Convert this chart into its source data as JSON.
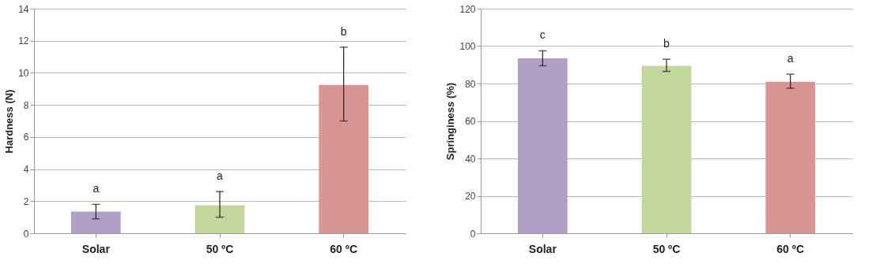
{
  "chart_data": [
    {
      "type": "bar",
      "ylabel": "Hardness (N)",
      "categories": [
        "Solar",
        "50 ºC",
        "60 ºC"
      ],
      "values": [
        1.35,
        1.75,
        9.25
      ],
      "colors": [
        "#b0a0c8",
        "#c3d69b",
        "#d99594"
      ],
      "errors": [
        [
          0.9,
          1.8
        ],
        [
          1.0,
          2.6
        ],
        [
          7.0,
          11.6
        ]
      ],
      "ylim": [
        0,
        14
      ],
      "yticks": [
        0,
        2,
        4,
        6,
        8,
        10,
        12,
        14
      ],
      "grid": "y",
      "annotations": [
        {
          "text": "a",
          "x": "Solar",
          "y": 1.8
        },
        {
          "text": "a",
          "x": "50 ºC",
          "y": 2.6
        },
        {
          "text": "b",
          "x": "60 ºC",
          "y": 11.6
        }
      ]
    },
    {
      "type": "bar",
      "ylabel": "Springiness (%)",
      "categories": [
        "Solar",
        "50 ºC",
        "60 ºC"
      ],
      "values": [
        93.5,
        89.5,
        81
      ],
      "colors": [
        "#b0a0c8",
        "#c3d69b",
        "#d99594"
      ],
      "errors": [
        [
          89.5,
          97.5
        ],
        [
          86.5,
          93
        ],
        [
          77.5,
          85
        ]
      ],
      "ylim": [
        0,
        120
      ],
      "yticks": [
        0,
        20,
        40,
        60,
        80,
        100,
        120
      ],
      "grid": "y",
      "annotations": [
        {
          "text": "c",
          "x": "Solar",
          "y": 97.5
        },
        {
          "text": "b",
          "x": "50 ºC",
          "y": 93
        },
        {
          "text": "a",
          "x": "60 ºC",
          "y": 85
        }
      ]
    }
  ]
}
